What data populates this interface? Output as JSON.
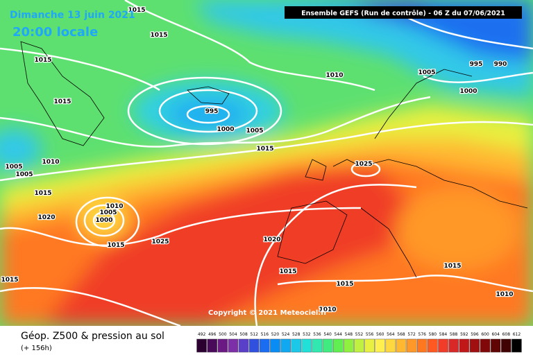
{
  "header": {
    "date": "Dimanche 13 juin 2021",
    "time": "20:00 locale",
    "model": "Ensemble GEFS  (Run de contrôle)  -  06 Z du 07/06/2021"
  },
  "map": {
    "copyright": "Copyright © 2021 Meteociel.fr",
    "isobar_labels": [
      "1015",
      "1015",
      "1015",
      "1015",
      "1010",
      "995",
      "1000",
      "1005",
      "1015",
      "1005",
      "995",
      "990",
      "1000",
      "1010",
      "1005",
      "1005",
      "1015",
      "1020",
      "1010",
      "1005",
      "1000",
      "1015",
      "1025",
      "1025",
      "1020",
      "1015",
      "1015",
      "1015",
      "1010",
      "1015",
      "1010"
    ]
  },
  "footer": {
    "title": "Géop. Z500 & pression au sol",
    "lead": "(+ 156h)",
    "scale": {
      "labels": [
        "492",
        "496",
        "500",
        "504",
        "508",
        "512",
        "516",
        "520",
        "524",
        "528",
        "532",
        "536",
        "540",
        "544",
        "548",
        "552",
        "556",
        "560",
        "564",
        "568",
        "572",
        "576",
        "580",
        "584",
        "588",
        "592",
        "596",
        "600",
        "604",
        "608",
        "612"
      ],
      "colors": [
        "#2b0030",
        "#4a0a5a",
        "#6a1a82",
        "#7d2fa8",
        "#5a3fc8",
        "#3050e0",
        "#1a6cf0",
        "#0a8cf5",
        "#10a8f0",
        "#1cc8e8",
        "#20e0d8",
        "#30e8b0",
        "#40ec80",
        "#60ee50",
        "#90f040",
        "#c0f040",
        "#e8f040",
        "#fff050",
        "#ffd840",
        "#ffb830",
        "#ff9828",
        "#ff7820",
        "#ff5820",
        "#f03c28",
        "#d82828",
        "#c01818",
        "#a01010",
        "#800808",
        "#600404",
        "#400202",
        "#000000"
      ]
    }
  }
}
